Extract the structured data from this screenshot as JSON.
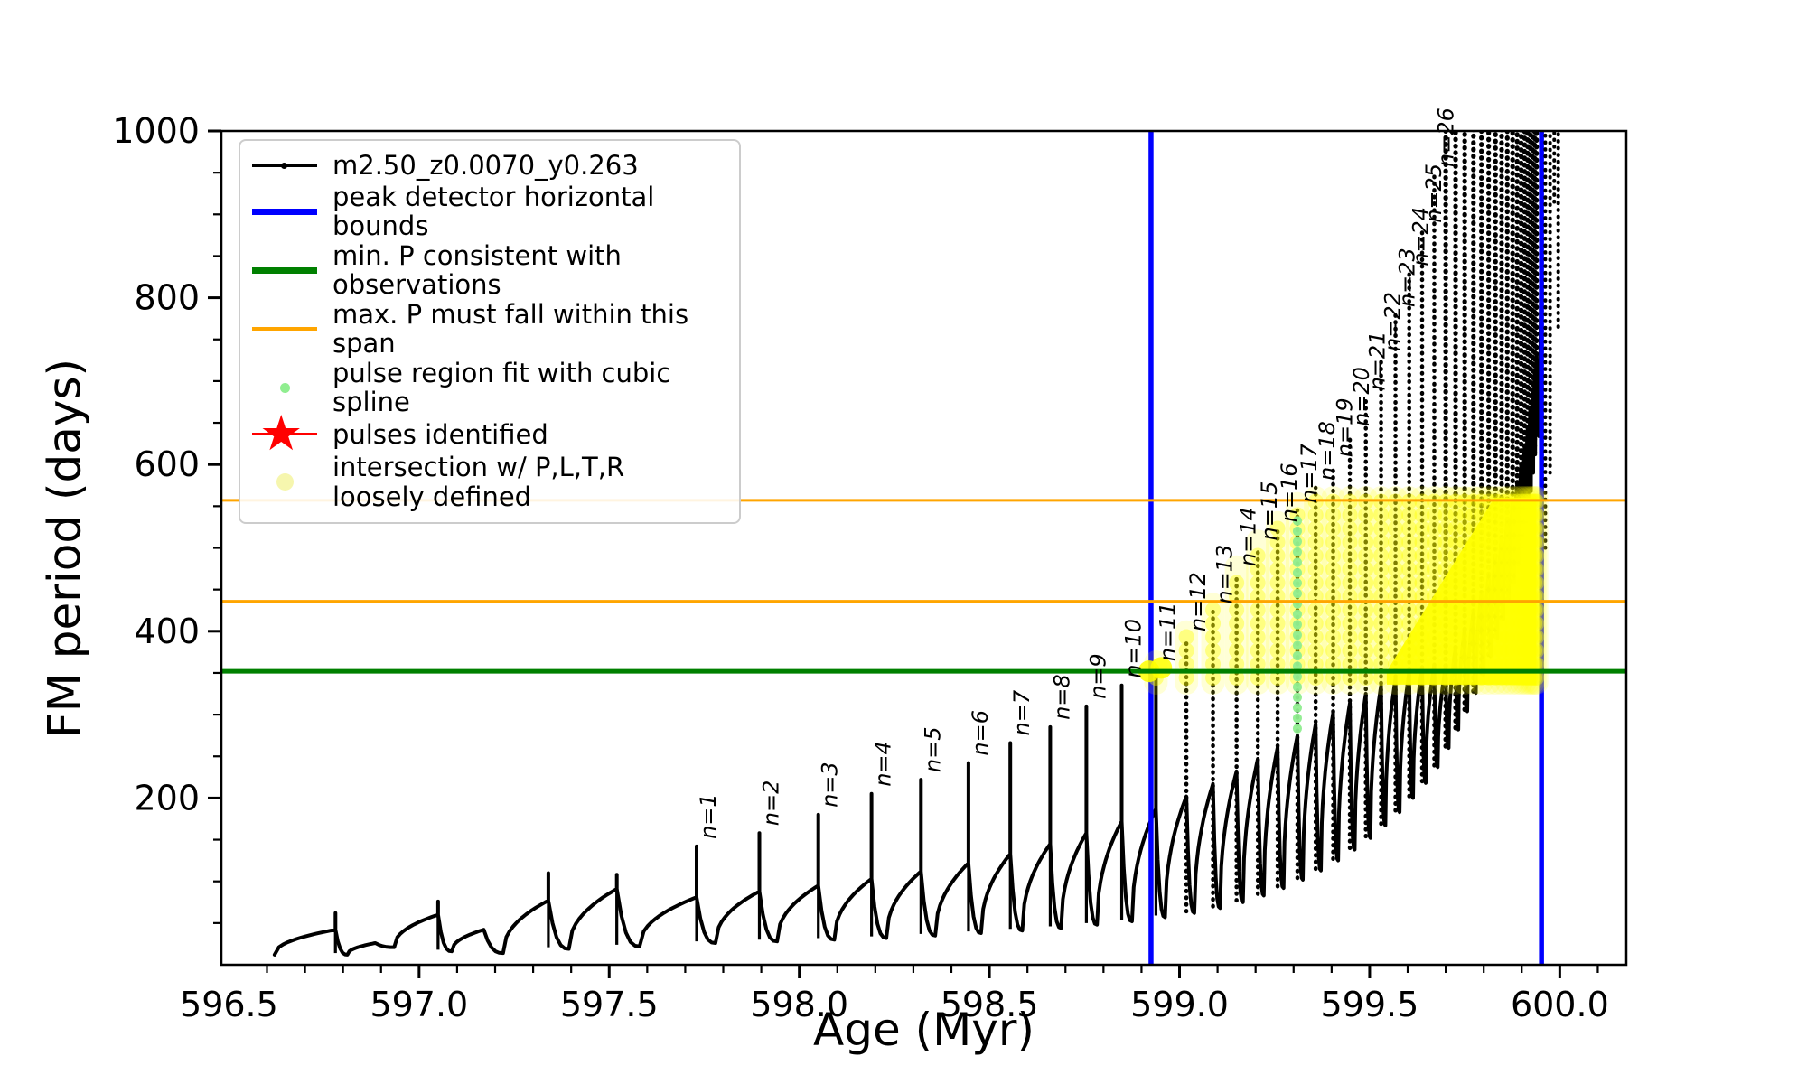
{
  "chart_data": {
    "type": "line",
    "title": "",
    "xlabel": "Age (Myr)",
    "ylabel": "FM period (days)",
    "xlim": [
      596.48,
      600.175
    ],
    "ylim": [
      0,
      1000
    ],
    "x_ticks": [
      596.5,
      597.0,
      597.5,
      598.0,
      598.5,
      599.0,
      599.5,
      600.0
    ],
    "y_ticks": [
      200,
      400,
      600,
      800,
      1000
    ],
    "x_minor_step": 0.1,
    "y_minor_step": 50,
    "grid": false,
    "legend_position": "upper left",
    "series_name": "m2.50_z0.0070_y0.263",
    "colors": {
      "series": "#000000",
      "peak_detector_bounds": "#0000ff",
      "min_p_line": "#008000",
      "max_p_span": "#ffa500",
      "spline_fit": "#90ee90",
      "pulses_identified": "#ff0000",
      "intersection": "#ffff00"
    },
    "peak_detector_bounds_x": [
      598.925,
      599.952
    ],
    "min_p_line_y": 352,
    "max_p_span_y": [
      436,
      557
    ],
    "curve_start": [
      596.62,
      12
    ],
    "pulses": [
      [
        596.78,
        42,
        62,
        12,
        null
      ],
      [
        596.885,
        26,
        27,
        21,
        null
      ],
      [
        597.05,
        60,
        76,
        16,
        null
      ],
      [
        597.17,
        42,
        46,
        14,
        null
      ],
      [
        597.34,
        77,
        110,
        19,
        null
      ],
      [
        597.52,
        91,
        108,
        22,
        null
      ],
      [
        597.73,
        81,
        142,
        26,
        "n=1"
      ],
      [
        597.895,
        88,
        158,
        28,
        "n=2"
      ],
      [
        598.05,
        95,
        180,
        30,
        "n=3"
      ],
      [
        598.19,
        103,
        205,
        32,
        "n=4"
      ],
      [
        598.32,
        112,
        222,
        35,
        "n=5"
      ],
      [
        598.445,
        122,
        242,
        38,
        "n=6"
      ],
      [
        598.555,
        133,
        266,
        41,
        "n=7"
      ],
      [
        598.66,
        145,
        285,
        44,
        "n=8"
      ],
      [
        598.755,
        158,
        310,
        48,
        "n=9"
      ],
      [
        598.848,
        172,
        335,
        52,
        "n=10"
      ],
      [
        598.938,
        187,
        355,
        57,
        "n=11"
      ],
      [
        599.018,
        202,
        391,
        62,
        "n=12"
      ],
      [
        599.088,
        217,
        424,
        68,
        "n=13"
      ],
      [
        599.15,
        232,
        469,
        75,
        "n=14"
      ],
      [
        599.206,
        247,
        500,
        83,
        "n=15"
      ],
      [
        599.258,
        261,
        522,
        92,
        "n=16"
      ],
      [
        599.31,
        275,
        545,
        102,
        "n=17"
      ],
      [
        599.358,
        289,
        572,
        113,
        "n=18"
      ],
      [
        599.404,
        302,
        600,
        125,
        "n=19"
      ],
      [
        599.448,
        314,
        637,
        138,
        "n=20"
      ],
      [
        599.49,
        325,
        680,
        152,
        "n=21"
      ],
      [
        599.53,
        335,
        727,
        167,
        "n=22"
      ],
      [
        599.568,
        344,
        780,
        183,
        "n=23"
      ],
      [
        599.604,
        351,
        829,
        200,
        "n=24"
      ],
      [
        599.638,
        356,
        881,
        218,
        "n=25"
      ],
      [
        599.67,
        360,
        948,
        237,
        "n=26"
      ],
      [
        599.7,
        null,
        1008,
        260,
        null
      ],
      [
        599.726,
        null,
        1008,
        282,
        null
      ],
      [
        599.75,
        null,
        1008,
        304,
        null
      ],
      [
        599.773,
        null,
        1008,
        326,
        null
      ],
      [
        599.794,
        null,
        1008,
        348,
        null
      ],
      [
        599.813,
        null,
        1008,
        370,
        null
      ],
      [
        599.831,
        null,
        1008,
        392,
        null
      ],
      [
        599.847,
        null,
        1008,
        414,
        null
      ],
      [
        599.862,
        null,
        1008,
        436,
        null
      ],
      [
        599.876,
        null,
        1008,
        458,
        null
      ],
      [
        599.888,
        null,
        1008,
        480,
        null
      ],
      [
        599.8985,
        null,
        1008,
        502,
        null
      ],
      [
        599.9075,
        null,
        1008,
        524,
        null
      ],
      [
        599.9155,
        null,
        1008,
        546,
        null
      ],
      [
        599.9225,
        null,
        1008,
        568,
        null
      ],
      [
        599.9285,
        null,
        1008,
        590,
        null
      ],
      [
        599.934,
        null,
        1008,
        612,
        null
      ],
      [
        599.939,
        null,
        1008,
        634,
        null
      ]
    ],
    "post_bound_spikes": [
      [
        599.962,
        500,
        1008
      ],
      [
        599.9745,
        590,
        1008
      ],
      [
        599.9855,
        915,
        1008
      ],
      [
        599.996,
        765,
        1008
      ]
    ],
    "spline_fit_strip": {
      "age": 599.31,
      "v_min": 283,
      "v_max": 542
    },
    "intersection_markers": {
      "strip_v_min": 338,
      "strip_cap": 560,
      "first_strip_pulse": "n=11",
      "dots": [
        [
          598.92,
          352
        ],
        [
          598.952,
          356
        ]
      ],
      "blob": [
        [
          599.545,
          336
        ],
        [
          599.938,
          336
        ],
        [
          599.938,
          560
        ],
        [
          599.828,
          560
        ],
        [
          599.545,
          352
        ]
      ]
    }
  },
  "legend": {
    "items": [
      {
        "label": "m2.50_z0.0070_y0.263"
      },
      {
        "label": "peak detector horizontal bounds"
      },
      {
        "label": "min. P consistent with observations"
      },
      {
        "label": "max. P must fall within this span"
      },
      {
        "label": "pulse region fit with cubic spline"
      },
      {
        "label": "pulses identified"
      },
      {
        "label": "intersection w/ P,L,T,R",
        "label2": "loosely defined"
      }
    ]
  }
}
